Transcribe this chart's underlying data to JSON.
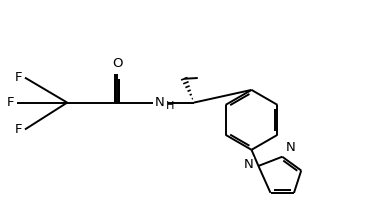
{
  "background_color": "#ffffff",
  "line_color": "#000000",
  "line_width": 1.4,
  "font_size": 9.5,
  "fig_width": 3.84,
  "fig_height": 2.14,
  "dpi": 100,
  "xlim": [
    0,
    10
  ],
  "ylim": [
    0,
    5.57
  ]
}
